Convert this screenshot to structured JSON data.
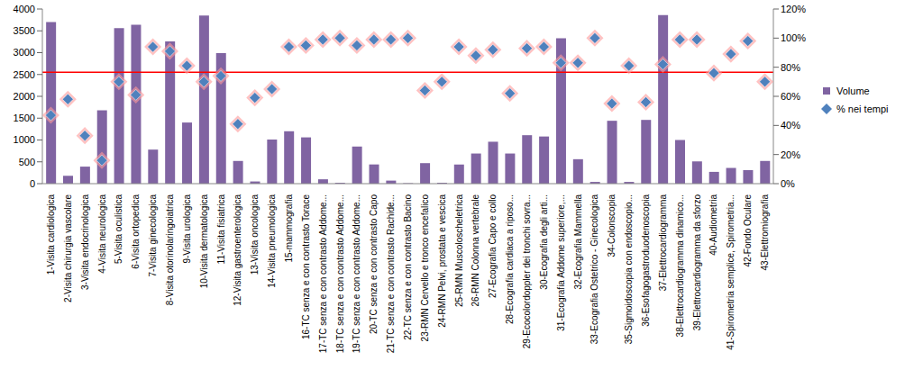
{
  "chart_data": {
    "type": "bar",
    "categories": [
      "1-Visita cardiologica",
      "2-Visita chirurgia vascolare",
      "3-Visita endocrinologica",
      "4-Visita neurologica",
      "5-Visita oculistica",
      "6-Visita ortopedica",
      "7-Visita ginecologica",
      "8-Visita otorinolaringoiatrica",
      "9-Visita urologica",
      "10-Visita dermatologica",
      "11-Visita fisiatrica",
      "12-Visita gastroenterologica",
      "13-Visita oncologica",
      "14-Visita pneumologica",
      "15-mammografia",
      "16-TC senza e con contrasto Torace",
      "17-TC senza e con contrasto Addome...",
      "18-TC senza e con contrasto Addome...",
      "19-TC senza e con contrasto Addome...",
      "20-TC senza e con contrasto Capo",
      "21-TC senza e con contrasto Rachide...",
      "22-TC senza e con contrasto Bacino",
      "23-RMN Cervello e tronco encefalico",
      "24-RMN Pelvi, prostata e vescica",
      "25-RMN Muscoloscheletrica",
      "26-RMN Colonna vertebrale",
      "27-Ecografia Capo e collo",
      "28-Ecografia cardiaca a riposo...",
      "29-Ecocolordoppler dei tronchi sovra...",
      "30-Ecografia degli arti...",
      "31-Ecografia Addome superiore,...",
      "32-Ecografia Mammella",
      "33-Ecografia Ostetrico - Ginecologica",
      "34-Colonscopia",
      "35-Sigmoidoscopia con endoscopio...",
      "36-Esofagogastroduodenoscopia",
      "37-Elettrocardiogramma",
      "38-Elettrocardiogramma dinamico...",
      "39-Elettrocardiogramma da sforzo",
      "40-Audiometria",
      "41-Spirometria semplice, Spirometria...",
      "42-Fondo Oculare",
      "43-Elettromiografia"
    ],
    "series": [
      {
        "name": "Volume",
        "type": "bar",
        "color": "#8064a2",
        "values": [
          3700,
          180,
          390,
          1680,
          3560,
          3640,
          780,
          3260,
          1400,
          3850,
          2990,
          520,
          50,
          1010,
          1200,
          1060,
          100,
          20,
          850,
          440,
          70,
          10,
          470,
          20,
          440,
          690,
          960,
          690,
          1110,
          1080,
          3330,
          560,
          40,
          1440,
          40,
          1460,
          3860,
          1000,
          510,
          270,
          360,
          310,
          520
        ]
      },
      {
        "name": "% nei tempi",
        "type": "scatter",
        "marker": "diamond",
        "color": "#4f81bd",
        "axis": "y2",
        "values": [
          47,
          58,
          33,
          16,
          70,
          61,
          94,
          91,
          81,
          70,
          74,
          41,
          59,
          65,
          94,
          95,
          99,
          100,
          95,
          99,
          99,
          100,
          64,
          70,
          94,
          88,
          92,
          62,
          93,
          94,
          83,
          83,
          100,
          55,
          81,
          56,
          82,
          99,
          99,
          76,
          89,
          98,
          70
        ]
      }
    ],
    "ylim": [
      0,
      4000
    ],
    "yticks": [
      0,
      500,
      1000,
      1500,
      2000,
      2500,
      3000,
      3500,
      4000
    ],
    "y2lim": [
      0,
      120
    ],
    "y2ticks": [
      {
        "value": 0,
        "label": "0%"
      },
      {
        "value": 20,
        "label": "20%"
      },
      {
        "value": 40,
        "label": "40%"
      },
      {
        "value": 60,
        "label": "60%"
      },
      {
        "value": 80,
        "label": "80%"
      },
      {
        "value": 100,
        "label": "100%"
      },
      {
        "value": 120,
        "label": "120%"
      }
    ],
    "reference_line": {
      "value": 2550,
      "color": "#ff0000"
    },
    "grid": false,
    "legend": "right"
  }
}
